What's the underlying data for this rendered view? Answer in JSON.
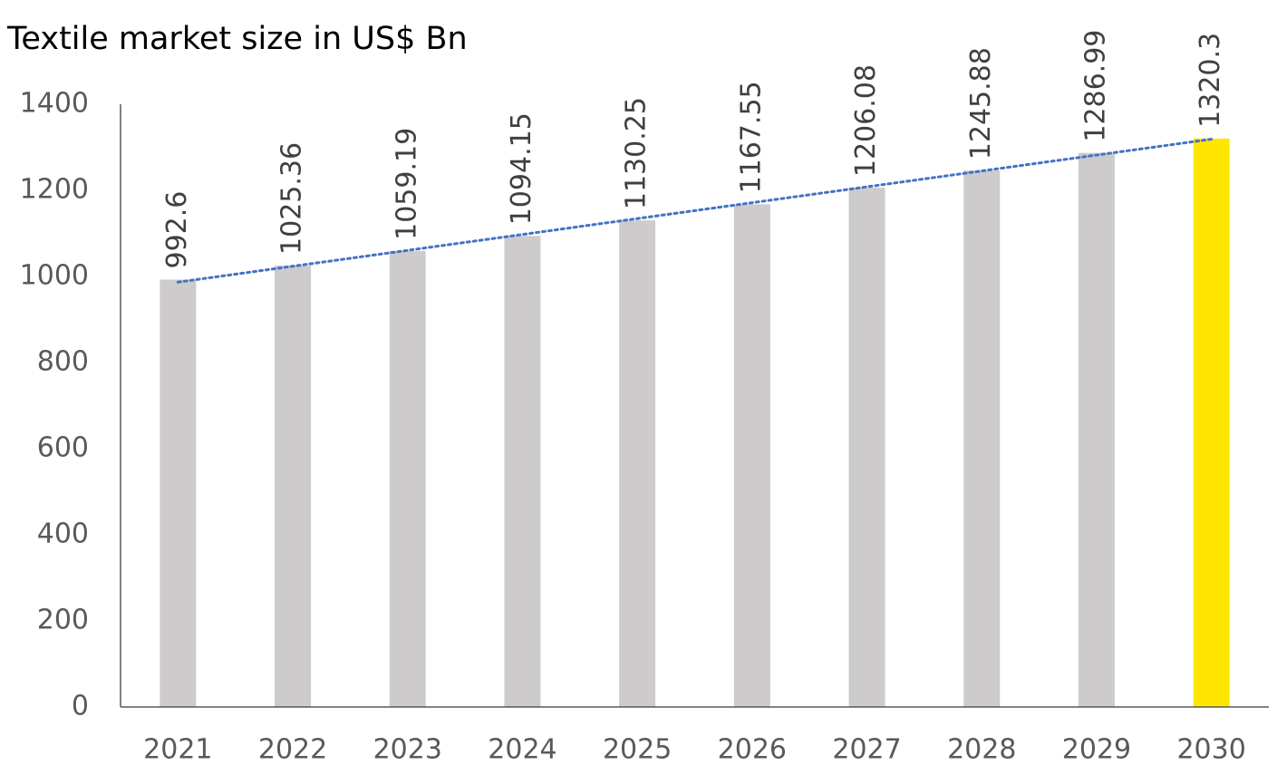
{
  "chart_data": {
    "type": "bar",
    "title": "Textile market size in US$ Bn",
    "categories": [
      "2021",
      "2022",
      "2023",
      "2024",
      "2025",
      "2026",
      "2027",
      "2028",
      "2029",
      "2030"
    ],
    "values": [
      992.6,
      1025.36,
      1059.19,
      1094.15,
      1130.25,
      1167.55,
      1206.08,
      1245.88,
      1286.99,
      1320.3
    ],
    "colors": [
      "#cdcbcc",
      "#cdcbcc",
      "#cdcbcc",
      "#cdcbcc",
      "#cdcbcc",
      "#cdcbcc",
      "#cdcbcc",
      "#cdcbcc",
      "#cdcbcc",
      "#ffe600"
    ],
    "ylim": [
      0,
      1400
    ],
    "yticks": [
      0,
      200,
      400,
      600,
      800,
      1000,
      1200,
      1400
    ],
    "grid": false,
    "trendline": true,
    "trendline_color": "#4472c4"
  }
}
